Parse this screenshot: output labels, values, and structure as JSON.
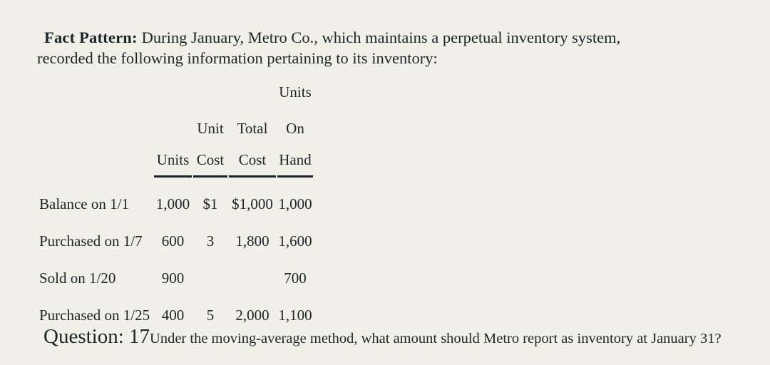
{
  "colors": {
    "background": "#f0f0e9",
    "text": "#1c2428",
    "table_rule": "#1a2025"
  },
  "fact_pattern": {
    "label": "Fact Pattern:",
    "line1": "During January, Metro Co., which maintains a perpetual inventory system,",
    "line2": "recorded the following information pertaining to its inventory:"
  },
  "inventory_table": {
    "headers": {
      "units": [
        "Units"
      ],
      "unit_cost": [
        "Unit",
        "Cost"
      ],
      "total_cost": [
        "Total",
        "Cost"
      ],
      "on_hand": [
        "Units",
        "On",
        "Hand"
      ]
    },
    "rows": [
      {
        "label": "Balance on 1/1",
        "units": "1,000",
        "unit_cost": "$1",
        "total_cost": "$1,000",
        "on_hand": "1,000"
      },
      {
        "label": "Purchased on 1/7",
        "units": "600",
        "unit_cost": "3",
        "total_cost": "1,800",
        "on_hand": "1,600"
      },
      {
        "label": "Sold on 1/20",
        "units": "900",
        "unit_cost": "",
        "total_cost": "",
        "on_hand": "700"
      },
      {
        "label": "Purchased on 1/25",
        "units": "400",
        "unit_cost": "5",
        "total_cost": "2,000",
        "on_hand": "1,100"
      }
    ]
  },
  "question": {
    "label": "Question: 17",
    "text": "Under the moving-average method, what amount should Metro report as inventory at January 31?"
  }
}
